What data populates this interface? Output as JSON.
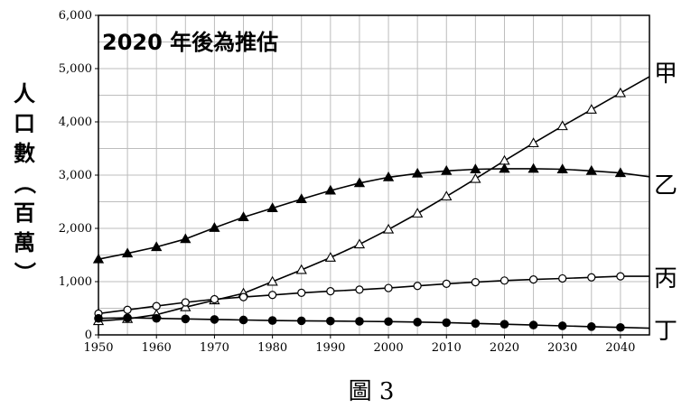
{
  "chart_data": {
    "type": "line",
    "title": "",
    "annotation": "2020 年後為推估",
    "caption": "圖 3",
    "ylabel": "人口數（百萬）",
    "ylabel_chars": [
      "人",
      "口",
      "數",
      "（",
      "百",
      "萬",
      "）"
    ],
    "xlabel": "",
    "xlim": [
      1950,
      2045
    ],
    "ylim": [
      0,
      6000
    ],
    "x_ticks": [
      1950,
      1960,
      1970,
      1980,
      1990,
      2000,
      2010,
      2020,
      2030,
      2040
    ],
    "y_ticks": [
      0,
      1000,
      2000,
      3000,
      4000,
      5000,
      6000
    ],
    "y_tick_labels": [
      "0",
      "1,000",
      "2,000",
      "3,000",
      "4,000",
      "5,000",
      "6,000"
    ],
    "grid": true,
    "legend": "series labels at right end of lines",
    "x": [
      1950,
      1955,
      1960,
      1965,
      1970,
      1975,
      1980,
      1985,
      1990,
      1995,
      2000,
      2005,
      2010,
      2015,
      2020,
      2025,
      2030,
      2035,
      2040,
      2045
    ],
    "series": [
      {
        "name": "甲",
        "marker": "open-triangle",
        "values": [
          260,
          300,
          380,
          520,
          650,
          780,
          1000,
          1220,
          1450,
          1700,
          1980,
          2280,
          2600,
          2930,
          3270,
          3600,
          3920,
          4230,
          4540,
          4850
        ]
      },
      {
        "name": "乙",
        "marker": "filled-triangle",
        "values": [
          1420,
          1530,
          1650,
          1800,
          2010,
          2210,
          2380,
          2550,
          2710,
          2850,
          2960,
          3030,
          3080,
          3110,
          3120,
          3120,
          3110,
          3080,
          3040,
          2970
        ]
      },
      {
        "name": "丙",
        "marker": "open-circle",
        "values": [
          400,
          470,
          540,
          610,
          670,
          710,
          750,
          790,
          820,
          850,
          880,
          920,
          960,
          990,
          1020,
          1040,
          1060,
          1080,
          1100,
          1100
        ]
      },
      {
        "name": "丁",
        "marker": "filled-circle",
        "values": [
          310,
          320,
          310,
          300,
          290,
          280,
          270,
          265,
          260,
          255,
          250,
          240,
          230,
          215,
          200,
          185,
          170,
          155,
          140,
          125
        ]
      }
    ]
  }
}
